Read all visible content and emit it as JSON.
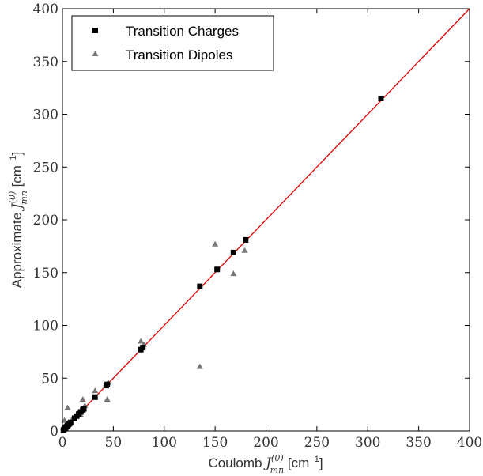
{
  "chart_data": {
    "type": "scatter",
    "title": "",
    "xlabel": {
      "prefix": "Coulomb ",
      "symbol": "J",
      "superscript": "(0)",
      "subscript": "mn",
      "unit_open": " [cm",
      "unit_exp": "−1",
      "unit_close": "]"
    },
    "ylabel": {
      "prefix": "Approximate ",
      "symbol": "J",
      "superscript": "(0)",
      "subscript": "mn",
      "unit_open": " [cm",
      "unit_exp": "−1",
      "unit_close": "]"
    },
    "xlim": [
      0,
      400
    ],
    "ylim": [
      0,
      400
    ],
    "xticks": [
      "0",
      "50",
      "100",
      "150",
      "200",
      "250",
      "300",
      "350",
      "400"
    ],
    "yticks": [
      "0",
      "50",
      "100",
      "150",
      "200",
      "250",
      "300",
      "350",
      "400"
    ],
    "grid": false,
    "legend_position": "top-left",
    "reference_line": {
      "points": [
        [
          0,
          0
        ],
        [
          400,
          400
        ]
      ],
      "color": "#e00000"
    },
    "series": [
      {
        "name": "Transition Charges",
        "marker": "square",
        "color": "#000000",
        "points": [
          [
            1,
            1
          ],
          [
            2,
            2
          ],
          [
            3,
            3
          ],
          [
            4,
            4
          ],
          [
            5,
            5
          ],
          [
            6,
            6
          ],
          [
            7,
            7
          ],
          [
            8,
            8
          ],
          [
            12,
            12
          ],
          [
            14,
            14
          ],
          [
            16,
            16
          ],
          [
            18,
            18
          ],
          [
            20,
            20
          ],
          [
            21,
            21
          ],
          [
            32,
            32
          ],
          [
            43,
            43
          ],
          [
            44,
            44
          ],
          [
            77,
            77
          ],
          [
            79,
            79
          ],
          [
            135,
            137
          ],
          [
            152,
            153
          ],
          [
            168,
            169
          ],
          [
            180,
            181
          ],
          [
            313,
            315
          ]
        ]
      },
      {
        "name": "Transition Dipoles",
        "marker": "triangle",
        "color": "#777777",
        "points": [
          [
            1,
            3
          ],
          [
            2,
            10
          ],
          [
            3,
            6
          ],
          [
            5,
            22
          ],
          [
            6,
            8
          ],
          [
            8,
            9
          ],
          [
            10,
            12
          ],
          [
            14,
            14
          ],
          [
            16,
            18
          ],
          [
            18,
            15
          ],
          [
            20,
            30
          ],
          [
            22,
            24
          ],
          [
            32,
            38
          ],
          [
            44,
            30
          ],
          [
            45,
            46
          ],
          [
            77,
            85
          ],
          [
            80,
            82
          ],
          [
            135,
            61
          ],
          [
            150,
            177
          ],
          [
            168,
            149
          ],
          [
            179,
            171
          ],
          [
            313,
            315
          ]
        ]
      }
    ]
  }
}
